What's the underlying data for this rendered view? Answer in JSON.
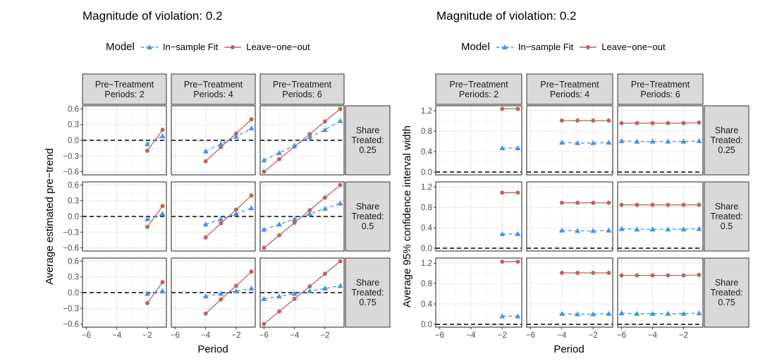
{
  "figure": {
    "colors": {
      "in_sample": "#4a90e2",
      "loo": "#c0645a",
      "strip_bg": "#d9d9d9",
      "grid": "#ebebeb",
      "border": "#333333"
    }
  },
  "chart_data": [
    {
      "type": "line",
      "title": "Magnitude of violation: 0.2",
      "legend": {
        "title": "Model",
        "entries": [
          "In−sample Fit",
          "Leave−one−out"
        ],
        "placement": "top"
      },
      "xlabel": "Period",
      "ylabel": "Average estimated pre−trend",
      "xlim": [
        -6.25,
        -0.75
      ],
      "ylim": [
        -0.66,
        0.66
      ],
      "xticks": [
        -6,
        -4,
        -2
      ],
      "xtick_labels": [
        "−6",
        "−4",
        "−2"
      ],
      "yticks": [
        -0.6,
        -0.3,
        0.0,
        0.3,
        0.6
      ],
      "ytick_labels": [
        "−0.6",
        "−0.3",
        "0.0",
        "0.3",
        "0.6"
      ],
      "hline": 0,
      "col_facets": [
        "Pre−Treatment\nPeriods: 2",
        "Pre−Treatment\nPeriods: 4",
        "Pre−Treatment\nPeriods: 6"
      ],
      "row_facets": [
        "Share\nTreated:\n0.25",
        "Share\nTreated:\n0.5",
        "Share\nTreated:\n0.75"
      ],
      "panels": [
        [
          {
            "x": [
              -2,
              -1
            ],
            "series": [
              {
                "name": "In−sample Fit",
                "values": [
                  -0.07,
                  0.08
                ]
              },
              {
                "name": "Leave−one−out",
                "values": [
                  -0.2,
                  0.2
                ]
              }
            ]
          },
          {
            "x": [
              -4,
              -3,
              -2,
              -1
            ],
            "series": [
              {
                "name": "In−sample Fit",
                "values": [
                  -0.21,
                  -0.07,
                  0.07,
                  0.23
                ]
              },
              {
                "name": "Leave−one−out",
                "values": [
                  -0.4,
                  -0.13,
                  0.13,
                  0.4
                ]
              }
            ]
          },
          {
            "x": [
              -6,
              -5,
              -4,
              -3,
              -2,
              -1
            ],
            "series": [
              {
                "name": "In−sample Fit",
                "values": [
                  -0.38,
                  -0.24,
                  -0.1,
                  0.06,
                  0.2,
                  0.37
                ]
              },
              {
                "name": "Leave−one−out",
                "values": [
                  -0.6,
                  -0.36,
                  -0.12,
                  0.12,
                  0.36,
                  0.6
                ]
              }
            ]
          }
        ],
        [
          {
            "x": [
              -2,
              -1
            ],
            "series": [
              {
                "name": "In−sample Fit",
                "values": [
                  -0.05,
                  0.05
                ]
              },
              {
                "name": "Leave−one−out",
                "values": [
                  -0.2,
                  0.2
                ]
              }
            ]
          },
          {
            "x": [
              -4,
              -3,
              -2,
              -1
            ],
            "series": [
              {
                "name": "In−sample Fit",
                "values": [
                  -0.15,
                  -0.05,
                  0.05,
                  0.16
                ]
              },
              {
                "name": "Leave−one−out",
                "values": [
                  -0.4,
                  -0.13,
                  0.13,
                  0.4
                ]
              }
            ]
          },
          {
            "x": [
              -6,
              -5,
              -4,
              -3,
              -2,
              -1
            ],
            "series": [
              {
                "name": "In−sample Fit",
                "values": [
                  -0.25,
                  -0.15,
                  -0.05,
                  0.05,
                  0.15,
                  0.25
                ]
              },
              {
                "name": "Leave−one−out",
                "values": [
                  -0.6,
                  -0.36,
                  -0.12,
                  0.12,
                  0.36,
                  0.6
                ]
              }
            ]
          }
        ],
        [
          {
            "x": [
              -2,
              -1
            ],
            "series": [
              {
                "name": "In−sample Fit",
                "values": [
                  -0.02,
                  0.03
                ]
              },
              {
                "name": "Leave−one−out",
                "values": [
                  -0.2,
                  0.2
                ]
              }
            ]
          },
          {
            "x": [
              -4,
              -3,
              -2,
              -1
            ],
            "series": [
              {
                "name": "In−sample Fit",
                "values": [
                  -0.07,
                  -0.02,
                  0.03,
                  0.08
                ]
              },
              {
                "name": "Leave−one−out",
                "values": [
                  -0.4,
                  -0.13,
                  0.13,
                  0.4
                ]
              }
            ]
          },
          {
            "x": [
              -6,
              -5,
              -4,
              -3,
              -2,
              -1
            ],
            "series": [
              {
                "name": "In−sample Fit",
                "values": [
                  -0.12,
                  -0.07,
                  -0.02,
                  0.03,
                  0.08,
                  0.13
                ]
              },
              {
                "name": "Leave−one−out",
                "values": [
                  -0.6,
                  -0.36,
                  -0.12,
                  0.12,
                  0.36,
                  0.6
                ]
              }
            ]
          }
        ]
      ]
    },
    {
      "type": "line",
      "title": "Magnitude of violation: 0.2",
      "legend": {
        "title": "Model",
        "entries": [
          "In−sample Fit",
          "Leave−one−out"
        ],
        "placement": "top"
      },
      "xlabel": "Period",
      "ylabel": "Average 95% confidence interval width",
      "xlim": [
        -6.25,
        -0.75
      ],
      "ylim": [
        -0.055,
        1.3
      ],
      "xticks": [
        -6,
        -4,
        -2
      ],
      "xtick_labels": [
        "−6",
        "−4",
        "−2"
      ],
      "yticks": [
        0.0,
        0.4,
        0.8,
        1.2
      ],
      "ytick_labels": [
        "0.0",
        "0.4",
        "0.8",
        "1.2"
      ],
      "hline": 0,
      "col_facets": [
        "Pre−Treatment\nPeriods: 2",
        "Pre−Treatment\nPeriods: 4",
        "Pre−Treatment\nPeriods: 6"
      ],
      "row_facets": [
        "Share\nTreated:\n0.25",
        "Share\nTreated:\n0.5",
        "Share\nTreated:\n0.75"
      ],
      "panels": [
        [
          {
            "x": [
              -2,
              -1
            ],
            "series": [
              {
                "name": "In−sample Fit",
                "values": [
                  0.47,
                  0.47
                ]
              },
              {
                "name": "Leave−one−out",
                "values": [
                  1.24,
                  1.24
                ]
              }
            ]
          },
          {
            "x": [
              -4,
              -3,
              -2,
              -1
            ],
            "series": [
              {
                "name": "In−sample Fit",
                "values": [
                  0.58,
                  0.57,
                  0.57,
                  0.58
                ]
              },
              {
                "name": "Leave−one−out",
                "values": [
                  1.01,
                  1.01,
                  1.01,
                  1.01
                ]
              }
            ]
          },
          {
            "x": [
              -6,
              -5,
              -4,
              -3,
              -2,
              -1
            ],
            "series": [
              {
                "name": "In−sample Fit",
                "values": [
                  0.61,
                  0.6,
                  0.6,
                  0.6,
                  0.6,
                  0.61
                ]
              },
              {
                "name": "Leave−one−out",
                "values": [
                  0.96,
                  0.96,
                  0.96,
                  0.96,
                  0.96,
                  0.97
                ]
              }
            ]
          }
        ],
        [
          {
            "x": [
              -2,
              -1
            ],
            "series": [
              {
                "name": "In−sample Fit",
                "values": [
                  0.28,
                  0.28
                ]
              },
              {
                "name": "Leave−one−out",
                "values": [
                  1.09,
                  1.09
                ]
              }
            ]
          },
          {
            "x": [
              -4,
              -3,
              -2,
              -1
            ],
            "series": [
              {
                "name": "In−sample Fit",
                "values": [
                  0.35,
                  0.34,
                  0.34,
                  0.35
                ]
              },
              {
                "name": "Leave−one−out",
                "values": [
                  0.89,
                  0.89,
                  0.89,
                  0.89
                ]
              }
            ]
          },
          {
            "x": [
              -6,
              -5,
              -4,
              -3,
              -2,
              -1
            ],
            "series": [
              {
                "name": "In−sample Fit",
                "values": [
                  0.38,
                  0.37,
                  0.37,
                  0.37,
                  0.37,
                  0.38
                ]
              },
              {
                "name": "Leave−one−out",
                "values": [
                  0.85,
                  0.85,
                  0.85,
                  0.85,
                  0.85,
                  0.85
                ]
              }
            ]
          }
        ],
        [
          {
            "x": [
              -2,
              -1
            ],
            "series": [
              {
                "name": "In−sample Fit",
                "values": [
                  0.16,
                  0.16
                ]
              },
              {
                "name": "Leave−one−out",
                "values": [
                  1.23,
                  1.23
                ]
              }
            ]
          },
          {
            "x": [
              -4,
              -3,
              -2,
              -1
            ],
            "series": [
              {
                "name": "In−sample Fit",
                "values": [
                  0.21,
                  0.2,
                  0.2,
                  0.21
                ]
              },
              {
                "name": "Leave−one−out",
                "values": [
                  1.01,
                  1.01,
                  1.01,
                  1.01
                ]
              }
            ]
          },
          {
            "x": [
              -6,
              -5,
              -4,
              -3,
              -2,
              -1
            ],
            "series": [
              {
                "name": "In−sample Fit",
                "values": [
                  0.22,
                  0.21,
                  0.21,
                  0.21,
                  0.21,
                  0.22
                ]
              },
              {
                "name": "Leave−one−out",
                "values": [
                  0.96,
                  0.96,
                  0.96,
                  0.96,
                  0.96,
                  0.97
                ]
              }
            ]
          }
        ]
      ]
    }
  ]
}
